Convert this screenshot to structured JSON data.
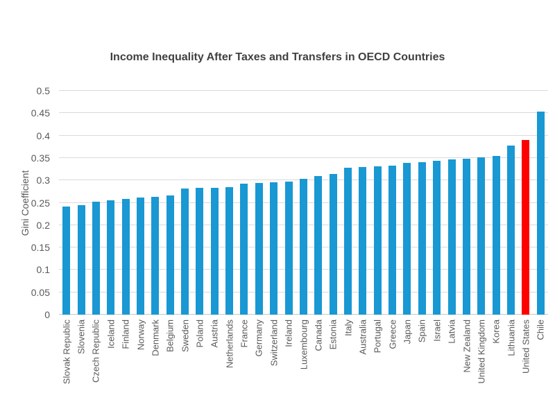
{
  "chart": {
    "title": "Income Inequality After Taxes and Transfers in OECD Countries"
  },
  "chart_data": {
    "type": "bar",
    "title": "Income Inequality After Taxes and Transfers in OECD Countries",
    "xlabel": "",
    "ylabel": "Gini Coefficient",
    "ylim": [
      0,
      0.5
    ],
    "ytick_labels": [
      "0",
      "0.05",
      "0.1",
      "0.15",
      "0.2",
      "0.25",
      "0.3",
      "0.35",
      "0.4",
      "0.45",
      "0.5"
    ],
    "grid": true,
    "legend": false,
    "bar_color": "#1998d3",
    "highlight_category": "United States",
    "highlight_color": "#fe0000",
    "categories": [
      "Slovak Republic",
      "Slovenia",
      "Czech Republic",
      "Iceland",
      "Finland",
      "Norway",
      "Denmark",
      "Belgium",
      "Sweden",
      "Poland",
      "Austria",
      "Netherlands",
      "France",
      "Germany",
      "Switzerland",
      "Ireland",
      "Luxembourg",
      "Canada",
      "Estonia",
      "Italy",
      "Australia",
      "Portugal",
      "Greece",
      "Japan",
      "Spain",
      "Israel",
      "Latvia",
      "New Zealand",
      "United Kingdom",
      "Korea",
      "Lithuania",
      "United States",
      "Chile"
    ],
    "values": [
      0.241,
      0.244,
      0.253,
      0.255,
      0.259,
      0.262,
      0.263,
      0.266,
      0.282,
      0.284,
      0.284,
      0.285,
      0.292,
      0.294,
      0.296,
      0.297,
      0.304,
      0.31,
      0.314,
      0.328,
      0.33,
      0.331,
      0.333,
      0.339,
      0.341,
      0.344,
      0.346,
      0.349,
      0.351,
      0.355,
      0.378,
      0.39,
      0.454
    ]
  },
  "colors": {
    "background": "#ffffff",
    "gridline": "#d9d9d9",
    "baseline": "#c6c6c6",
    "title_text": "#404040",
    "axis_text": "#595959"
  }
}
